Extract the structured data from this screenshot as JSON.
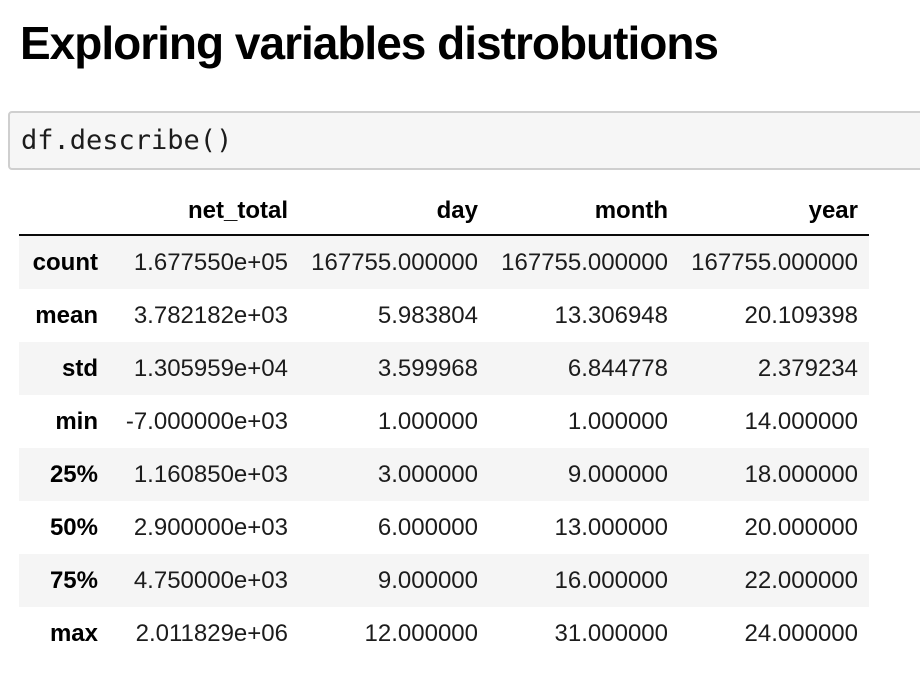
{
  "page": {
    "title": "Exploring variables distrobutions"
  },
  "code_cell": {
    "code": "df.describe()"
  },
  "table": {
    "columns": [
      "",
      "net_total",
      "day",
      "month",
      "year"
    ],
    "rows": [
      {
        "label": "count",
        "values": [
          "1.677550e+05",
          "167755.000000",
          "167755.000000",
          "167755.000000"
        ]
      },
      {
        "label": "mean",
        "values": [
          "3.782182e+03",
          "5.983804",
          "13.306948",
          "20.109398"
        ]
      },
      {
        "label": "std",
        "values": [
          "1.305959e+04",
          "3.599968",
          "6.844778",
          "2.379234"
        ]
      },
      {
        "label": "min",
        "values": [
          "-7.000000e+03",
          "1.000000",
          "1.000000",
          "14.000000"
        ]
      },
      {
        "label": "25%",
        "values": [
          "1.160850e+03",
          "3.000000",
          "9.000000",
          "18.000000"
        ]
      },
      {
        "label": "50%",
        "values": [
          "2.900000e+03",
          "6.000000",
          "13.000000",
          "20.000000"
        ]
      },
      {
        "label": "75%",
        "values": [
          "4.750000e+03",
          "9.000000",
          "16.000000",
          "22.000000"
        ]
      },
      {
        "label": "max",
        "values": [
          "2.011829e+06",
          "12.000000",
          "31.000000",
          "24.000000"
        ]
      }
    ]
  },
  "colors": {
    "stripe": "#f5f5f5",
    "code_cell_bg": "#f6f6f6",
    "code_cell_border": "#cfcfcf",
    "header_rule": "#0a0a0a",
    "text": "#1c1c1c"
  }
}
